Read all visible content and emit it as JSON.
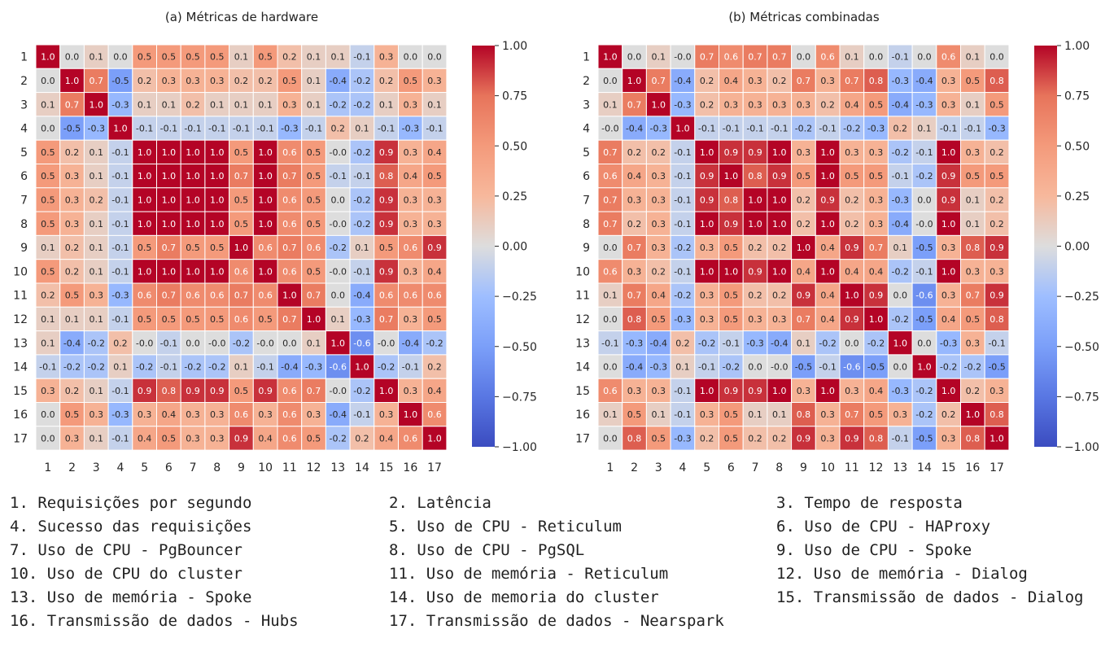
{
  "labels": [
    "1",
    "2",
    "3",
    "4",
    "5",
    "6",
    "7",
    "8",
    "9",
    "10",
    "11",
    "12",
    "13",
    "14",
    "15",
    "16",
    "17"
  ],
  "colorbar": {
    "ticks": [
      "1.00",
      "0.75",
      "0.50",
      "0.25",
      "0.00",
      "−0.25",
      "−0.50",
      "−0.75",
      "−1.00"
    ],
    "vmin": -1,
    "vmax": 1
  },
  "colors": {
    "low": "#3b4cc0",
    "mid": "#dddddd",
    "high": "#b40426"
  },
  "chart_data": [
    {
      "type": "heatmap",
      "title": "(a) Métricas de hardware",
      "vlim": [
        -1,
        1
      ],
      "values": [
        [
          "1.0",
          "0.0",
          "0.1",
          "0.0",
          "0.5",
          "0.5",
          "0.5",
          "0.5",
          "0.1",
          "0.5",
          "0.2",
          "0.1",
          "0.1",
          "-0.1",
          "0.3",
          "0.0",
          "0.0"
        ],
        [
          "0.0",
          "1.0",
          "0.7",
          "-0.5",
          "0.2",
          "0.3",
          "0.3",
          "0.3",
          "0.2",
          "0.2",
          "0.5",
          "0.1",
          "-0.4",
          "-0.2",
          "0.2",
          "0.5",
          "0.3"
        ],
        [
          "0.1",
          "0.7",
          "1.0",
          "-0.3",
          "0.1",
          "0.1",
          "0.2",
          "0.1",
          "0.1",
          "0.1",
          "0.3",
          "0.1",
          "-0.2",
          "-0.2",
          "0.1",
          "0.3",
          "0.1"
        ],
        [
          "0.0",
          "-0.5",
          "-0.3",
          "1.0",
          "-0.1",
          "-0.1",
          "-0.1",
          "-0.1",
          "-0.1",
          "-0.1",
          "-0.3",
          "-0.1",
          "0.2",
          "0.1",
          "-0.1",
          "-0.3",
          "-0.1"
        ],
        [
          "0.5",
          "0.2",
          "0.1",
          "-0.1",
          "1.0",
          "1.0",
          "1.0",
          "1.0",
          "0.5",
          "1.0",
          "0.6",
          "0.5",
          "-0.0",
          "-0.2",
          "0.9",
          "0.3",
          "0.4"
        ],
        [
          "0.5",
          "0.3",
          "0.1",
          "-0.1",
          "1.0",
          "1.0",
          "1.0",
          "1.0",
          "0.7",
          "1.0",
          "0.7",
          "0.5",
          "-0.1",
          "-0.1",
          "0.8",
          "0.4",
          "0.5"
        ],
        [
          "0.5",
          "0.3",
          "0.2",
          "-0.1",
          "1.0",
          "1.0",
          "1.0",
          "1.0",
          "0.5",
          "1.0",
          "0.6",
          "0.5",
          "0.0",
          "-0.2",
          "0.9",
          "0.3",
          "0.3"
        ],
        [
          "0.5",
          "0.3",
          "0.1",
          "-0.1",
          "1.0",
          "1.0",
          "1.0",
          "1.0",
          "0.5",
          "1.0",
          "0.6",
          "0.5",
          "-0.0",
          "-0.2",
          "0.9",
          "0.3",
          "0.3"
        ],
        [
          "0.1",
          "0.2",
          "0.1",
          "-0.1",
          "0.5",
          "0.7",
          "0.5",
          "0.5",
          "1.0",
          "0.6",
          "0.7",
          "0.6",
          "-0.2",
          "0.1",
          "0.5",
          "0.6",
          "0.9"
        ],
        [
          "0.5",
          "0.2",
          "0.1",
          "-0.1",
          "1.0",
          "1.0",
          "1.0",
          "1.0",
          "0.6",
          "1.0",
          "0.6",
          "0.5",
          "-0.0",
          "-0.1",
          "0.9",
          "0.3",
          "0.4"
        ],
        [
          "0.2",
          "0.5",
          "0.3",
          "-0.3",
          "0.6",
          "0.7",
          "0.6",
          "0.6",
          "0.7",
          "0.6",
          "1.0",
          "0.7",
          "0.0",
          "-0.4",
          "0.6",
          "0.6",
          "0.6"
        ],
        [
          "0.1",
          "0.1",
          "0.1",
          "-0.1",
          "0.5",
          "0.5",
          "0.5",
          "0.5",
          "0.6",
          "0.5",
          "0.7",
          "1.0",
          "0.1",
          "-0.3",
          "0.7",
          "0.3",
          "0.5"
        ],
        [
          "0.1",
          "-0.4",
          "-0.2",
          "0.2",
          "-0.0",
          "-0.1",
          "0.0",
          "-0.0",
          "-0.2",
          "-0.0",
          "0.0",
          "0.1",
          "1.0",
          "-0.6",
          "-0.0",
          "-0.4",
          "-0.2"
        ],
        [
          "-0.1",
          "-0.2",
          "-0.2",
          "0.1",
          "-0.2",
          "-0.1",
          "-0.2",
          "-0.2",
          "0.1",
          "-0.1",
          "-0.4",
          "-0.3",
          "-0.6",
          "1.0",
          "-0.2",
          "-0.1",
          "0.2"
        ],
        [
          "0.3",
          "0.2",
          "0.1",
          "-0.1",
          "0.9",
          "0.8",
          "0.9",
          "0.9",
          "0.5",
          "0.9",
          "0.6",
          "0.7",
          "-0.0",
          "-0.2",
          "1.0",
          "0.3",
          "0.4"
        ],
        [
          "0.0",
          "0.5",
          "0.3",
          "-0.3",
          "0.3",
          "0.4",
          "0.3",
          "0.3",
          "0.6",
          "0.3",
          "0.6",
          "0.3",
          "-0.4",
          "-0.1",
          "0.3",
          "1.0",
          "0.6"
        ],
        [
          "0.0",
          "0.3",
          "0.1",
          "-0.1",
          "0.4",
          "0.5",
          "0.3",
          "0.3",
          "0.9",
          "0.4",
          "0.6",
          "0.5",
          "-0.2",
          "0.2",
          "0.4",
          "0.6",
          "1.0"
        ]
      ]
    },
    {
      "type": "heatmap",
      "title": "(b) Métricas combinadas",
      "vlim": [
        -1,
        1
      ],
      "values": [
        [
          "1.0",
          "0.0",
          "0.1",
          "-0.0",
          "0.7",
          "0.6",
          "0.7",
          "0.7",
          "0.0",
          "0.6",
          "0.1",
          "0.0",
          "-0.1",
          "0.0",
          "0.6",
          "0.1",
          "0.0"
        ],
        [
          "0.0",
          "1.0",
          "0.7",
          "-0.4",
          "0.2",
          "0.4",
          "0.3",
          "0.2",
          "0.7",
          "0.3",
          "0.7",
          "0.8",
          "-0.3",
          "-0.4",
          "0.3",
          "0.5",
          "0.8"
        ],
        [
          "0.1",
          "0.7",
          "1.0",
          "-0.3",
          "0.2",
          "0.3",
          "0.3",
          "0.3",
          "0.3",
          "0.2",
          "0.4",
          "0.5",
          "-0.4",
          "-0.3",
          "0.3",
          "0.1",
          "0.5"
        ],
        [
          "-0.0",
          "-0.4",
          "-0.3",
          "1.0",
          "-0.1",
          "-0.1",
          "-0.1",
          "-0.1",
          "-0.2",
          "-0.1",
          "-0.2",
          "-0.3",
          "0.2",
          "0.1",
          "-0.1",
          "-0.1",
          "-0.3"
        ],
        [
          "0.7",
          "0.2",
          "0.2",
          "-0.1",
          "1.0",
          "0.9",
          "0.9",
          "1.0",
          "0.3",
          "1.0",
          "0.3",
          "0.3",
          "-0.2",
          "-0.1",
          "1.0",
          "0.3",
          "0.2"
        ],
        [
          "0.6",
          "0.4",
          "0.3",
          "-0.1",
          "0.9",
          "1.0",
          "0.8",
          "0.9",
          "0.5",
          "1.0",
          "0.5",
          "0.5",
          "-0.1",
          "-0.2",
          "0.9",
          "0.5",
          "0.5"
        ],
        [
          "0.7",
          "0.3",
          "0.3",
          "-0.1",
          "0.9",
          "0.8",
          "1.0",
          "1.0",
          "0.2",
          "0.9",
          "0.2",
          "0.3",
          "-0.3",
          "0.0",
          "0.9",
          "0.1",
          "0.2"
        ],
        [
          "0.7",
          "0.2",
          "0.3",
          "-0.1",
          "1.0",
          "0.9",
          "1.0",
          "1.0",
          "0.2",
          "1.0",
          "0.2",
          "0.3",
          "-0.4",
          "-0.0",
          "1.0",
          "0.1",
          "0.2"
        ],
        [
          "0.0",
          "0.7",
          "0.3",
          "-0.2",
          "0.3",
          "0.5",
          "0.2",
          "0.2",
          "1.0",
          "0.4",
          "0.9",
          "0.7",
          "0.1",
          "-0.5",
          "0.3",
          "0.8",
          "0.9"
        ],
        [
          "0.6",
          "0.3",
          "0.2",
          "-0.1",
          "1.0",
          "1.0",
          "0.9",
          "1.0",
          "0.4",
          "1.0",
          "0.4",
          "0.4",
          "-0.2",
          "-0.1",
          "1.0",
          "0.3",
          "0.3"
        ],
        [
          "0.1",
          "0.7",
          "0.4",
          "-0.2",
          "0.3",
          "0.5",
          "0.2",
          "0.2",
          "0.9",
          "0.4",
          "1.0",
          "0.9",
          "0.0",
          "-0.6",
          "0.3",
          "0.7",
          "0.9"
        ],
        [
          "0.0",
          "0.8",
          "0.5",
          "-0.3",
          "0.3",
          "0.5",
          "0.3",
          "0.3",
          "0.7",
          "0.4",
          "0.9",
          "1.0",
          "-0.2",
          "-0.5",
          "0.4",
          "0.5",
          "0.8"
        ],
        [
          "-0.1",
          "-0.3",
          "-0.4",
          "0.2",
          "-0.2",
          "-0.1",
          "-0.3",
          "-0.4",
          "0.1",
          "-0.2",
          "0.0",
          "-0.2",
          "1.0",
          "0.0",
          "-0.3",
          "0.3",
          "-0.1"
        ],
        [
          "0.0",
          "-0.4",
          "-0.3",
          "0.1",
          "-0.1",
          "-0.2",
          "0.0",
          "-0.0",
          "-0.5",
          "-0.1",
          "-0.6",
          "-0.5",
          "0.0",
          "1.0",
          "-0.2",
          "-0.2",
          "-0.5"
        ],
        [
          "0.6",
          "0.3",
          "0.3",
          "-0.1",
          "1.0",
          "0.9",
          "0.9",
          "1.0",
          "0.3",
          "1.0",
          "0.3",
          "0.4",
          "-0.3",
          "-0.2",
          "1.0",
          "0.2",
          "0.3"
        ],
        [
          "0.1",
          "0.5",
          "0.1",
          "-0.1",
          "0.3",
          "0.5",
          "0.1",
          "0.1",
          "0.8",
          "0.3",
          "0.7",
          "0.5",
          "0.3",
          "-0.2",
          "0.2",
          "1.0",
          "0.8"
        ],
        [
          "0.0",
          "0.8",
          "0.5",
          "-0.3",
          "0.2",
          "0.5",
          "0.2",
          "0.2",
          "0.9",
          "0.3",
          "0.9",
          "0.8",
          "-0.1",
          "-0.5",
          "0.3",
          "0.8",
          "1.0"
        ]
      ]
    }
  ],
  "legend": [
    "1. Requisições por segundo",
    "2. Latência",
    "3. Tempo de resposta",
    "4. Sucesso das requisições",
    "5. Uso de CPU - Reticulum",
    "6. Uso de CPU - HAProxy",
    "7. Uso de CPU - PgBouncer",
    "8. Uso de CPU - PgSQL",
    "9. Uso de CPU - Spoke",
    "10. Uso de CPU do cluster",
    "11. Uso de memória - Reticulum",
    "12. Uso de memória - Dialog",
    "13. Uso de memória - Spoke",
    "14. Uso de memoria do cluster",
    "15. Transmissão de dados - Dialog",
    "16. Transmissão de dados - Hubs",
    "17. Transmissão de dados - Nearspark"
  ]
}
